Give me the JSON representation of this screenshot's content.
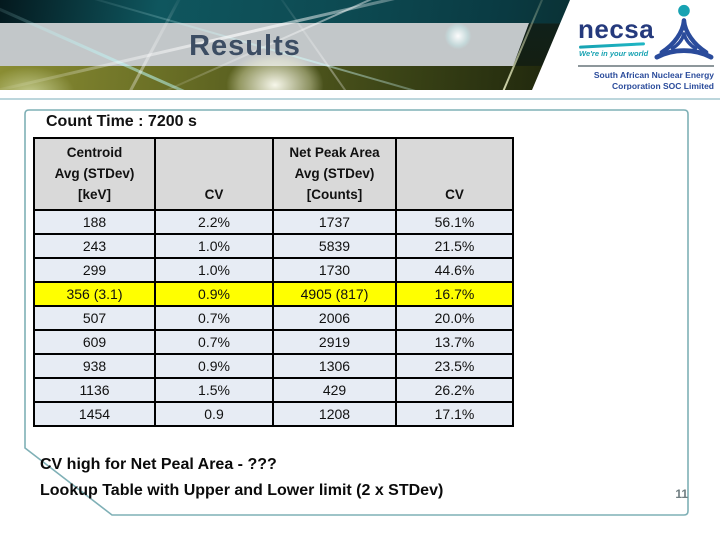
{
  "slide": {
    "title": "Results",
    "count_time": "Count Time : 7200 s",
    "footer_lines": [
      "CV high for Net Peal Area - ???",
      "Lookup Table with Upper and Lower limit (2 x STDev)"
    ],
    "page_number": "11"
  },
  "logo": {
    "name": "necsa",
    "tagline": "We're in your world",
    "org_line1": "South African Nuclear Energy",
    "org_line2": "Corporation SOC Limited"
  },
  "table": {
    "columns": [
      "Centroid\nAvg (STDev)\n[keV]",
      "CV",
      "Net Peak Area\nAvg (STDev)\n[Counts]",
      "CV"
    ],
    "rows": [
      {
        "cells": [
          "188",
          "2.2%",
          "1737",
          "56.1%"
        ],
        "highlight": false
      },
      {
        "cells": [
          "243",
          "1.0%",
          "5839",
          "21.5%"
        ],
        "highlight": false
      },
      {
        "cells": [
          "299",
          "1.0%",
          "1730",
          "44.6%"
        ],
        "highlight": false
      },
      {
        "cells": [
          "356 (3.1)",
          "0.9%",
          "4905 (817)",
          "16.7%"
        ],
        "highlight": true
      },
      {
        "cells": [
          "507",
          "0.7%",
          "2006",
          "20.0%"
        ],
        "highlight": false
      },
      {
        "cells": [
          "609",
          "0.7%",
          "2919",
          "13.7%"
        ],
        "highlight": false
      },
      {
        "cells": [
          "938",
          "0.9%",
          "1306",
          "23.5%"
        ],
        "highlight": false
      },
      {
        "cells": [
          "1136",
          "1.5%",
          "429",
          "26.2%"
        ],
        "highlight": false
      },
      {
        "cells": [
          "1454",
          "0.9",
          "1208",
          "17.1%"
        ],
        "highlight": false
      }
    ],
    "highlight_color": "#ffff00",
    "header_bg": "#d9d9d9",
    "row_bg": "#e7ecf4"
  },
  "colors": {
    "box_border": "#7fb0b6",
    "accent_teal": "#17a2b2",
    "logo_blue": "#253a7d",
    "results_text": "#3c4d63"
  }
}
